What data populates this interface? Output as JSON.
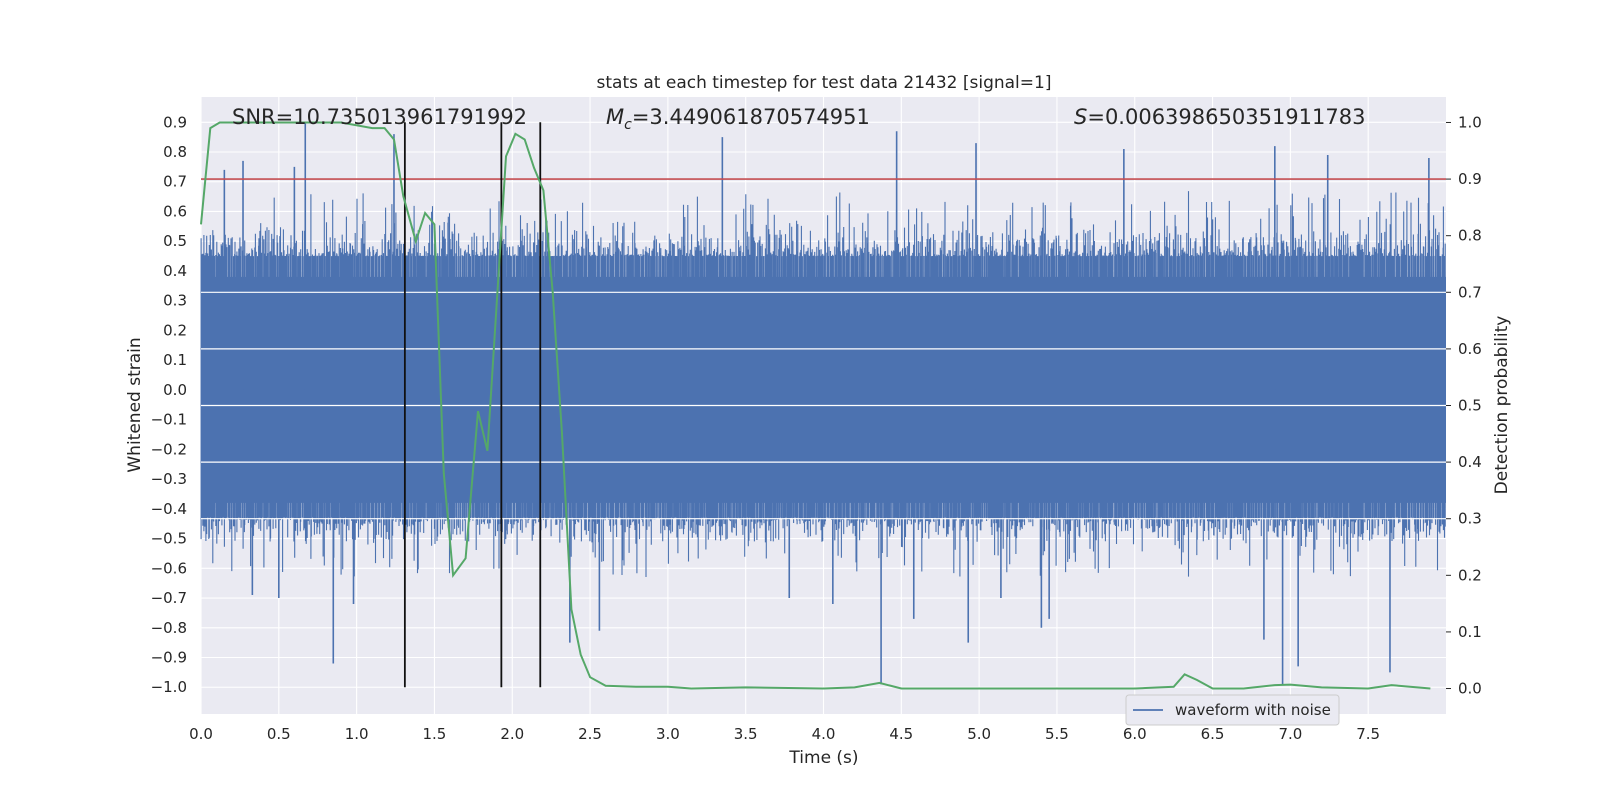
{
  "chart_data": {
    "type": "line",
    "title": "stats at each timestep for test data 21432 [signal=1]",
    "xlabel": "Time (s)",
    "ylabel_left": "Whitened strain",
    "ylabel_right": "Detection probability",
    "xlim": [
      0.0,
      8.0
    ],
    "ylim_left": [
      -1.09,
      0.985
    ],
    "ylim_right": [
      -0.045,
      1.045
    ],
    "x_ticks": [
      "0.0",
      "0.5",
      "1.0",
      "1.5",
      "2.0",
      "2.5",
      "3.0",
      "3.5",
      "4.0",
      "4.5",
      "5.0",
      "5.5",
      "6.0",
      "6.5",
      "7.0",
      "7.5"
    ],
    "y_left_ticks": [
      "0.9",
      "0.8",
      "0.7",
      "0.6",
      "0.5",
      "0.4",
      "0.3",
      "0.2",
      "0.1",
      "0.0",
      "−0.1",
      "−0.2",
      "−0.3",
      "−0.4",
      "−0.5",
      "−0.6",
      "−0.7",
      "−0.8",
      "−0.9",
      "−1.0"
    ],
    "y_right_ticks": [
      "0.0",
      "0.1",
      "0.2",
      "0.3",
      "0.4",
      "0.5",
      "0.6",
      "0.7",
      "0.8",
      "0.9",
      "1.0"
    ],
    "annotations": {
      "snr": "SNR=10.735013961791992",
      "mc_symbol": "M",
      "mc_sub": "c",
      "mc_value": "=3.449061870574951",
      "s_symbol": "S",
      "s_value": "=0.006398650351911783"
    },
    "threshold": {
      "value": 0.9,
      "axis": "right",
      "color": "#c44e52"
    },
    "vertical_markers": [
      1.31,
      1.93,
      2.18
    ],
    "waveform": {
      "name": "waveform with noise",
      "color": "#4c72b0",
      "core_band": [
        -0.48,
        0.5
      ],
      "spikes": [
        {
          "t": 0.67,
          "v": 0.9
        },
        {
          "t": 0.85,
          "v": -0.92
        },
        {
          "t": 1.24,
          "v": 0.86
        },
        {
          "t": 0.15,
          "v": 0.74
        },
        {
          "t": 0.27,
          "v": 0.77
        },
        {
          "t": 0.6,
          "v": 0.75
        },
        {
          "t": 0.5,
          "v": -0.7
        },
        {
          "t": 0.33,
          "v": -0.69
        },
        {
          "t": 0.98,
          "v": -0.72
        },
        {
          "t": 2.37,
          "v": -0.85
        },
        {
          "t": 2.56,
          "v": -0.81
        },
        {
          "t": 3.35,
          "v": 0.85
        },
        {
          "t": 4.37,
          "v": -0.99
        },
        {
          "t": 4.47,
          "v": 0.87
        },
        {
          "t": 4.98,
          "v": 0.83
        },
        {
          "t": 5.93,
          "v": 0.81
        },
        {
          "t": 6.9,
          "v": 0.82
        },
        {
          "t": 7.24,
          "v": 0.79
        },
        {
          "t": 7.89,
          "v": 0.78
        },
        {
          "t": 6.95,
          "v": -0.99
        },
        {
          "t": 7.05,
          "v": -0.93
        },
        {
          "t": 6.83,
          "v": -0.84
        },
        {
          "t": 7.64,
          "v": -0.95
        },
        {
          "t": 5.4,
          "v": -0.8
        },
        {
          "t": 5.14,
          "v": -0.7
        },
        {
          "t": 3.78,
          "v": -0.7
        },
        {
          "t": 4.06,
          "v": -0.72
        },
        {
          "t": 4.58,
          "v": -0.77
        },
        {
          "t": 4.93,
          "v": -0.85
        },
        {
          "t": 5.45,
          "v": -0.77
        }
      ]
    },
    "detection_probability": {
      "color": "#55a868",
      "x": [
        0.0,
        0.06,
        0.12,
        0.3,
        0.6,
        0.9,
        1.1,
        1.18,
        1.24,
        1.3,
        1.38,
        1.44,
        1.5,
        1.56,
        1.62,
        1.7,
        1.78,
        1.84,
        1.9,
        1.96,
        2.02,
        2.08,
        2.14,
        2.2,
        2.26,
        2.32,
        2.38,
        2.44,
        2.5,
        2.6,
        2.8,
        3.0,
        3.15,
        3.5,
        4.0,
        4.2,
        4.36,
        4.5,
        5.0,
        5.5,
        6.0,
        6.25,
        6.32,
        6.4,
        6.5,
        6.7,
        6.9,
        7.0,
        7.2,
        7.5,
        7.65,
        7.9
      ],
      "y": [
        0.82,
        0.99,
        1.0,
        1.0,
        1.0,
        1.0,
        0.99,
        0.99,
        0.97,
        0.87,
        0.79,
        0.84,
        0.82,
        0.38,
        0.2,
        0.23,
        0.49,
        0.42,
        0.68,
        0.94,
        0.98,
        0.97,
        0.92,
        0.88,
        0.7,
        0.45,
        0.14,
        0.06,
        0.02,
        0.005,
        0.003,
        0.003,
        0.0,
        0.002,
        0.0,
        0.002,
        0.01,
        0.0,
        0.0,
        0.0,
        0.0,
        0.003,
        0.025,
        0.015,
        0.0,
        0.0,
        0.006,
        0.007,
        0.002,
        0.0,
        0.006,
        0.0
      ]
    },
    "legend": {
      "entries": [
        "waveform with noise"
      ],
      "placement": "bottom-right"
    }
  }
}
